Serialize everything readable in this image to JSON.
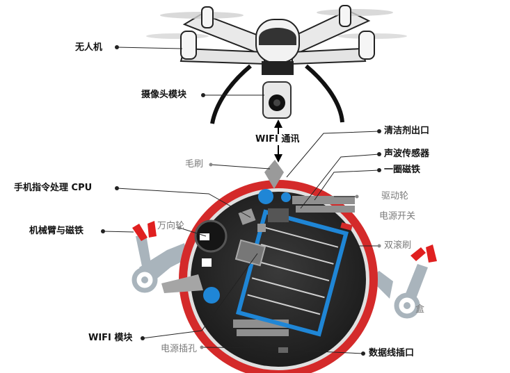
{
  "labels": {
    "drone": "无人机",
    "camera_module": "摄像头模块",
    "wifi_comm": "WIFI 通讯",
    "cleaner_outlet": "清洁剂出口",
    "sound_sensor": "声波传感器",
    "magnet_ring": "一圈磁铁",
    "brush": "毛刷",
    "drive_wheel": "驱动轮",
    "phone_cpu": "手机指令处理 CPU",
    "power_switch": "电源开关",
    "universal_wheel": "万向轮",
    "arm_magnet": "机械臂与磁铁",
    "double_roller": "双滚刷",
    "box": "盒",
    "wifi_module": "WIFI 模块",
    "power_jack": "电源插孔",
    "data_port": "数据线插口"
  },
  "colors": {
    "red_rim": "#d42a2a",
    "body": "#2a2a2a",
    "blue_accent": "#1f86d6",
    "arm_gray": "#a9b4bc",
    "arm_red": "#e02020"
  }
}
